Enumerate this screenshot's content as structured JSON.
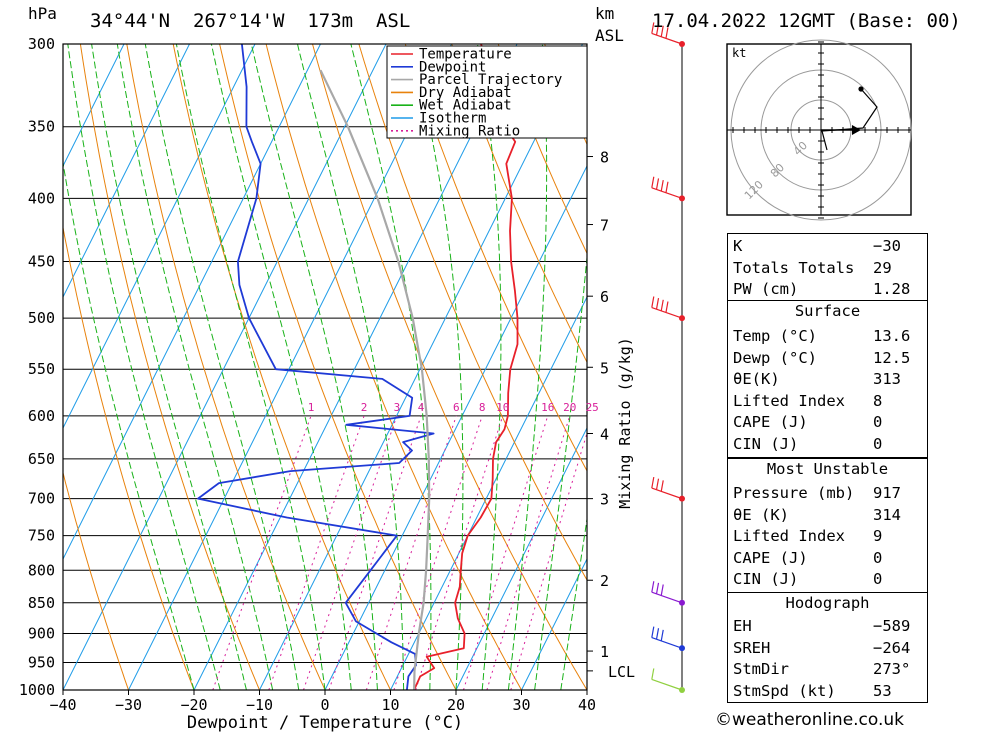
{
  "header": {
    "hpa_unit": "hPa",
    "location": "34°44'N  267°14'W  173m  ASL",
    "km_unit": "km",
    "asl_unit": "ASL",
    "datetime": "17.04.2022 12GMT (Base: 00)"
  },
  "colors": {
    "temperature": "#e8202a",
    "dewpoint": "#1f3ad6",
    "parcel": "#a8a8a8",
    "dry_adiabat": "#e8820c",
    "wet_adiabat": "#19b219",
    "isotherm": "#1e9be8",
    "mixing_ratio": "#d8209a",
    "wind_barb": "#e8202a"
  },
  "chart_data": {
    "type": "line",
    "xlabel": "Dewpoint / Temperature (°C)",
    "ylabel_left": "hPa",
    "ylabel_right": "km ASL",
    "mixing_label": "Mixing Ratio (g/kg)",
    "xlim": [
      -40,
      40
    ],
    "ylim": [
      1000,
      300
    ],
    "skew_slope": 0.5,
    "pressure_ticks": [
      300,
      350,
      400,
      450,
      500,
      550,
      600,
      650,
      700,
      750,
      800,
      850,
      900,
      950,
      1000
    ],
    "temp_ticks": [
      -40,
      -30,
      -20,
      -10,
      0,
      10,
      20,
      30,
      40
    ],
    "temp_tick_labels": [
      "−40",
      "−30",
      "−20",
      "−10",
      "0",
      "10",
      "20",
      "30",
      "40"
    ],
    "km_ticks": [
      {
        "p": 930,
        "label": "1"
      },
      {
        "p": 815,
        "label": "2"
      },
      {
        "p": 700,
        "label": "3"
      },
      {
        "p": 620,
        "label": "4"
      },
      {
        "p": 548,
        "label": "5"
      },
      {
        "p": 480,
        "label": "6"
      },
      {
        "p": 420,
        "label": "7"
      },
      {
        "p": 370,
        "label": "8"
      }
    ],
    "lcl": {
      "p": 965,
      "label": "LCL"
    },
    "mixing_ratios": [
      1,
      2,
      3,
      4,
      6,
      8,
      10,
      16,
      20,
      25
    ],
    "legend": [
      "Temperature",
      "Dewpoint",
      "Parcel Trajectory",
      "Dry Adiabat",
      "Wet Adiabat",
      "Isotherm",
      "Mixing Ratio"
    ],
    "series": [
      {
        "name": "Temperature",
        "points": [
          [
            1000,
            13.6
          ],
          [
            975,
            13.5
          ],
          [
            960,
            15
          ],
          [
            940,
            13
          ],
          [
            925,
            18
          ],
          [
            900,
            17
          ],
          [
            875,
            14.8
          ],
          [
            850,
            13.2
          ],
          [
            825,
            12.7
          ],
          [
            800,
            11.6
          ],
          [
            775,
            10.5
          ],
          [
            750,
            10
          ],
          [
            725,
            10.6
          ],
          [
            700,
            10.8
          ],
          [
            675,
            9.5
          ],
          [
            650,
            8
          ],
          [
            630,
            7.2
          ],
          [
            615,
            7.5
          ],
          [
            600,
            7
          ],
          [
            575,
            5.3
          ],
          [
            550,
            3.8
          ],
          [
            525,
            3
          ],
          [
            500,
            1
          ],
          [
            475,
            -1.5
          ],
          [
            450,
            -4.3
          ],
          [
            425,
            -6.8
          ],
          [
            400,
            -9
          ],
          [
            375,
            -12.5
          ],
          [
            360,
            -12.8
          ],
          [
            350,
            -15.5
          ],
          [
            325,
            -20
          ],
          [
            300,
            -25.5
          ]
        ]
      },
      {
        "name": "Dewpoint",
        "points": [
          [
            1000,
            12.5
          ],
          [
            975,
            11.7
          ],
          [
            955,
            12
          ],
          [
            935,
            11
          ],
          [
            915,
            6.5
          ],
          [
            880,
            -0.5
          ],
          [
            850,
            -3.5
          ],
          [
            800,
            -2.2
          ],
          [
            750,
            -0.8
          ],
          [
            725,
            -19
          ],
          [
            700,
            -34
          ],
          [
            680,
            -32
          ],
          [
            665,
            -22
          ],
          [
            655,
            -6
          ],
          [
            640,
            -5
          ],
          [
            630,
            -7
          ],
          [
            620,
            -3
          ],
          [
            610,
            -17
          ],
          [
            600,
            -8
          ],
          [
            580,
            -9
          ],
          [
            560,
            -15
          ],
          [
            550,
            -32
          ],
          [
            500,
            -40
          ],
          [
            470,
            -44
          ],
          [
            450,
            -46
          ],
          [
            400,
            -48
          ],
          [
            375,
            -50
          ],
          [
            360,
            -53
          ],
          [
            350,
            -55
          ],
          [
            325,
            -58
          ],
          [
            300,
            -62
          ]
        ]
      },
      {
        "name": "Parcel Trajectory",
        "points": [
          [
            1000,
            13.6
          ],
          [
            965,
            12.2
          ],
          [
            900,
            10
          ],
          [
            850,
            8.4
          ],
          [
            800,
            6.3
          ],
          [
            750,
            3.9
          ],
          [
            700,
            1.3
          ],
          [
            650,
            -1.8
          ],
          [
            600,
            -5.4
          ],
          [
            550,
            -9.7
          ],
          [
            500,
            -15
          ],
          [
            450,
            -21.5
          ],
          [
            400,
            -29.5
          ],
          [
            350,
            -39.5
          ],
          [
            315,
            -48
          ]
        ]
      }
    ],
    "wind_barbs": [
      {
        "p": 1000,
        "speed": 10,
        "dir": 250,
        "color": "#90d040"
      },
      {
        "p": 925,
        "speed": 25,
        "dir": 275,
        "color": "#1f3ad6"
      },
      {
        "p": 850,
        "speed": 30,
        "dir": 290,
        "color": "#8a1ad0"
      },
      {
        "p": 700,
        "speed": 25,
        "dir": 265,
        "color": "#e8202a"
      },
      {
        "p": 500,
        "speed": 35,
        "dir": 260,
        "color": "#e8202a"
      },
      {
        "p": 400,
        "speed": 40,
        "dir": 260,
        "color": "#e8202a"
      },
      {
        "p": 300,
        "speed": 40,
        "dir": 245,
        "color": "#e8202a"
      }
    ],
    "hodograph": {
      "unit": "kt",
      "ring_labels": [
        "40",
        "80",
        "120"
      ],
      "storm_motion": {
        "dir": 273,
        "speed": 53
      }
    }
  },
  "indices": {
    "top": [
      {
        "label": "K",
        "value": "−30"
      },
      {
        "label": "Totals Totals",
        "value": "29"
      },
      {
        "label": "PW (cm)",
        "value": "1.28"
      }
    ],
    "surface_title": "Surface",
    "surface": [
      {
        "label": "Temp (°C)",
        "value": "13.6"
      },
      {
        "label": "Dewp (°C)",
        "value": "12.5"
      },
      {
        "label": "θE(K)",
        "value": "313"
      },
      {
        "label": "Lifted Index",
        "value": "8"
      },
      {
        "label": "CAPE (J)",
        "value": "0"
      },
      {
        "label": "CIN (J)",
        "value": "0"
      }
    ],
    "mu_title": "Most Unstable",
    "mu": [
      {
        "label": "Pressure (mb)",
        "value": "917"
      },
      {
        "label": "θE (K)",
        "value": "314"
      },
      {
        "label": "Lifted Index",
        "value": "9"
      },
      {
        "label": "CAPE (J)",
        "value": "0"
      },
      {
        "label": "CIN (J)",
        "value": "0"
      }
    ],
    "hodo_title": "Hodograph",
    "hodo": [
      {
        "label": "EH",
        "value": "−589"
      },
      {
        "label": "SREH",
        "value": "−264"
      },
      {
        "label": "StmDir",
        "value": "273°"
      },
      {
        "label": "StmSpd (kt)",
        "value": "53"
      }
    ]
  },
  "footer": "©weatheronline.co.uk"
}
